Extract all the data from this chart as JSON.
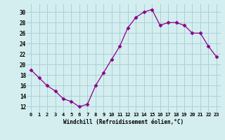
{
  "x": [
    0,
    1,
    2,
    3,
    4,
    5,
    6,
    7,
    8,
    9,
    10,
    11,
    12,
    13,
    14,
    15,
    16,
    17,
    18,
    19,
    20,
    21,
    22,
    23
  ],
  "y": [
    19,
    17.5,
    16,
    15,
    13.5,
    13,
    12,
    12.5,
    16,
    18.5,
    21,
    23.5,
    27,
    29,
    30,
    30.5,
    27.5,
    28,
    28,
    27.5,
    26,
    26,
    23.5,
    21.5
  ],
  "line_color": "#880088",
  "marker": "D",
  "marker_size": 2.5,
  "bg_color": "#d4eef0",
  "grid_color": "#aad0d8",
  "xlabel": "Windchill (Refroidissement éolien,°C)",
  "ylim": [
    11,
    31.5
  ],
  "xlim": [
    -0.5,
    23.5
  ],
  "yticks": [
    12,
    14,
    16,
    18,
    20,
    22,
    24,
    26,
    28,
    30
  ],
  "xticks": [
    0,
    1,
    2,
    3,
    4,
    5,
    6,
    7,
    8,
    9,
    10,
    11,
    12,
    13,
    14,
    15,
    16,
    17,
    18,
    19,
    20,
    21,
    22,
    23
  ],
  "xtick_labels": [
    "0",
    "1",
    "2",
    "3",
    "4",
    "5",
    "6",
    "7",
    "8",
    "9",
    "10",
    "11",
    "12",
    "13",
    "14",
    "15",
    "16",
    "17",
    "18",
    "19",
    "20",
    "21",
    "22",
    "23"
  ]
}
